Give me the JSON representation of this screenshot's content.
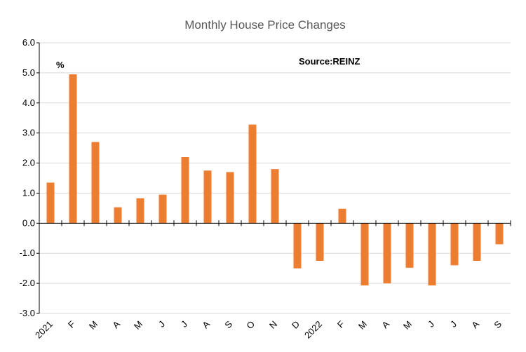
{
  "chart_data": {
    "type": "bar",
    "title": "Monthly House Price Changes",
    "unit_label": "%",
    "source_note": "Source:REINZ",
    "xlabel": "",
    "ylabel": "",
    "ylim": [
      -3.0,
      6.0
    ],
    "yticks": [
      "6.0",
      "5.0",
      "4.0",
      "3.0",
      "2.0",
      "1.0",
      "0.0",
      "-1.0",
      "-2.0",
      "-3.0"
    ],
    "grid": true,
    "bar_color": "#ED7D31",
    "categories": [
      "2021",
      "F",
      "M",
      "A",
      "M",
      "J",
      "J",
      "A",
      "S",
      "O",
      "N",
      "D",
      "2022",
      "F",
      "M",
      "A",
      "M",
      "J",
      "J",
      "A",
      "S"
    ],
    "values": [
      1.35,
      4.95,
      2.7,
      0.53,
      0.83,
      0.95,
      2.2,
      1.75,
      1.7,
      3.28,
      1.8,
      -1.5,
      -1.25,
      0.48,
      -2.07,
      -2.0,
      -1.48,
      -2.07,
      -1.4,
      -1.25,
      -0.7
    ]
  }
}
